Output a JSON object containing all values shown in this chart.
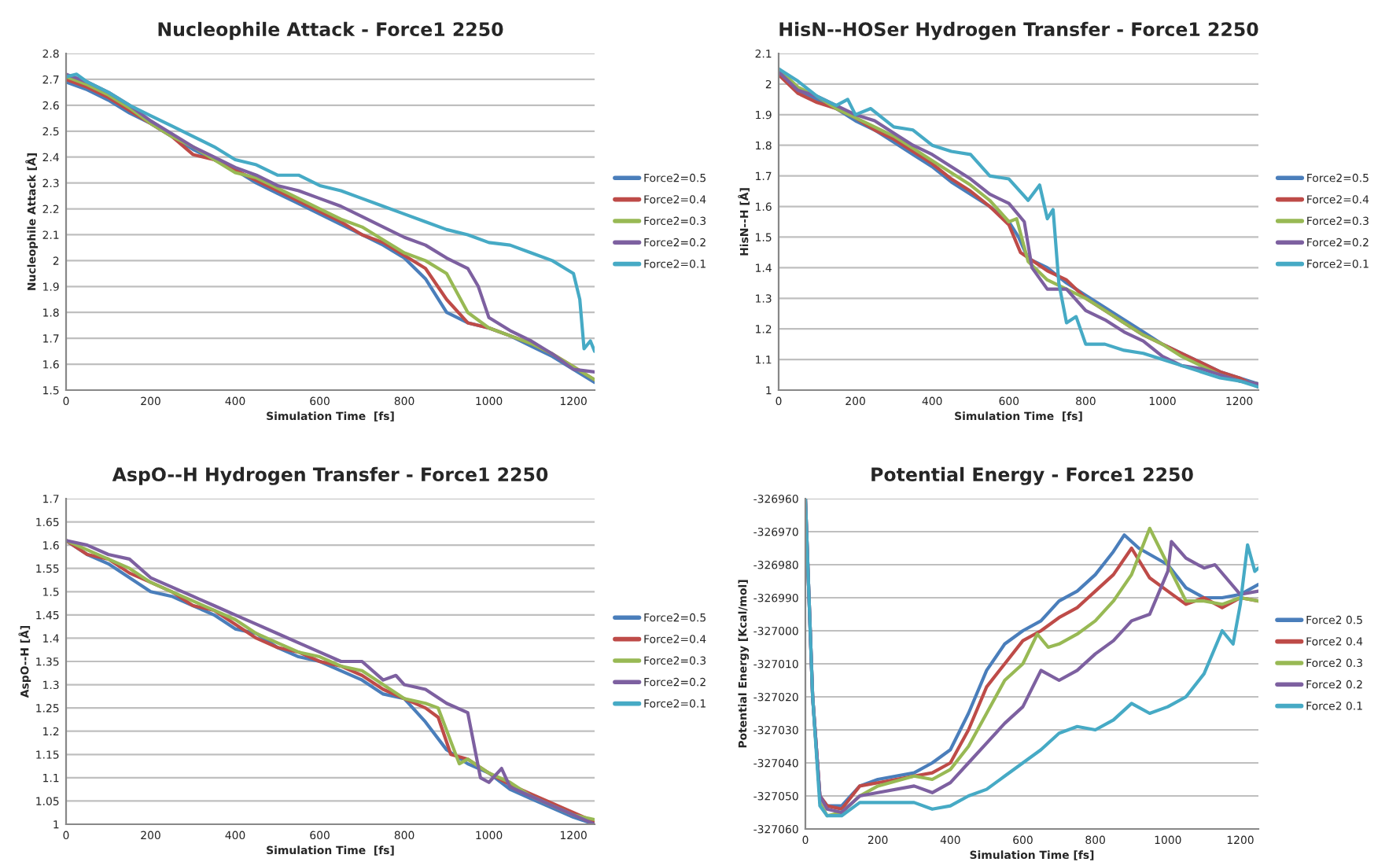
{
  "chart_data": [
    {
      "type": "line",
      "title": "Nucleophile Attack - Force1 2250",
      "xlabel": "Simulation Time  [fs]",
      "ylabel": "Nucleophile Attack [Å]",
      "xlim": [
        0,
        1250
      ],
      "xticks": [
        0,
        200,
        400,
        600,
        800,
        1000,
        1200
      ],
      "ylim": [
        1.5,
        2.8
      ],
      "yticks": [
        1.5,
        1.6,
        1.7,
        1.8,
        1.9,
        2,
        2.1,
        2.2,
        2.3,
        2.4,
        2.5,
        2.6,
        2.7,
        2.8
      ],
      "grid": "y",
      "legend": "right",
      "series": [
        {
          "name": "Force2=0.5",
          "color": "#4a7ebb",
          "x": [
            0,
            50,
            100,
            150,
            200,
            250,
            300,
            350,
            400,
            450,
            500,
            550,
            600,
            650,
            700,
            750,
            800,
            850,
            900,
            950,
            1000,
            1050,
            1100,
            1150,
            1200,
            1250
          ],
          "values": [
            2.69,
            2.66,
            2.62,
            2.57,
            2.53,
            2.48,
            2.43,
            2.39,
            2.35,
            2.3,
            2.26,
            2.22,
            2.18,
            2.14,
            2.1,
            2.06,
            2.01,
            1.93,
            1.8,
            1.76,
            1.74,
            1.71,
            1.67,
            1.63,
            1.58,
            1.53
          ]
        },
        {
          "name": "Force2=0.4",
          "color": "#be4b48",
          "x": [
            0,
            50,
            100,
            150,
            200,
            250,
            300,
            350,
            400,
            450,
            500,
            550,
            600,
            650,
            700,
            750,
            800,
            850,
            900,
            950,
            1000,
            1050,
            1100,
            1150,
            1200,
            1250
          ],
          "values": [
            2.7,
            2.67,
            2.63,
            2.58,
            2.53,
            2.48,
            2.41,
            2.39,
            2.35,
            2.31,
            2.27,
            2.23,
            2.19,
            2.15,
            2.1,
            2.07,
            2.02,
            1.97,
            1.85,
            1.76,
            1.74,
            1.71,
            1.68,
            1.64,
            1.59,
            1.54
          ]
        },
        {
          "name": "Force2=0.3",
          "color": "#98b954",
          "x": [
            0,
            50,
            100,
            150,
            200,
            250,
            300,
            350,
            400,
            450,
            500,
            550,
            600,
            650,
            700,
            750,
            800,
            850,
            900,
            950,
            1000,
            1050,
            1100,
            1150,
            1200,
            1250
          ],
          "values": [
            2.71,
            2.68,
            2.64,
            2.59,
            2.53,
            2.48,
            2.44,
            2.39,
            2.34,
            2.32,
            2.28,
            2.24,
            2.2,
            2.16,
            2.13,
            2.08,
            2.03,
            2.0,
            1.95,
            1.8,
            1.74,
            1.71,
            1.68,
            1.64,
            1.59,
            1.54
          ]
        },
        {
          "name": "Force2=0.2",
          "color": "#7d60a0",
          "x": [
            0,
            50,
            100,
            150,
            200,
            250,
            300,
            350,
            400,
            450,
            500,
            550,
            600,
            650,
            700,
            750,
            800,
            850,
            900,
            950,
            975,
            1000,
            1050,
            1100,
            1150,
            1200,
            1250
          ],
          "values": [
            2.72,
            2.69,
            2.65,
            2.6,
            2.54,
            2.49,
            2.44,
            2.4,
            2.36,
            2.33,
            2.29,
            2.27,
            2.24,
            2.21,
            2.17,
            2.13,
            2.09,
            2.06,
            2.01,
            1.97,
            1.9,
            1.78,
            1.73,
            1.69,
            1.64,
            1.58,
            1.57
          ]
        },
        {
          "name": "Force2=0.1",
          "color": "#46aac5",
          "x": [
            0,
            25,
            50,
            100,
            150,
            200,
            250,
            300,
            350,
            400,
            450,
            500,
            550,
            600,
            650,
            700,
            750,
            800,
            850,
            900,
            950,
            1000,
            1050,
            1100,
            1150,
            1180,
            1200,
            1215,
            1225,
            1240,
            1250
          ],
          "values": [
            2.71,
            2.72,
            2.69,
            2.65,
            2.6,
            2.56,
            2.52,
            2.48,
            2.44,
            2.39,
            2.37,
            2.33,
            2.33,
            2.29,
            2.27,
            2.24,
            2.21,
            2.18,
            2.15,
            2.12,
            2.1,
            2.07,
            2.06,
            2.03,
            2.0,
            1.97,
            1.95,
            1.85,
            1.66,
            1.69,
            1.65
          ]
        }
      ]
    },
    {
      "type": "line",
      "title": "HisN--HOSer Hydrogen Transfer - Force1 2250",
      "xlabel": "Simulation Time  [fs]",
      "ylabel": "HisN--H [Å]",
      "xlim": [
        0,
        1250
      ],
      "xticks": [
        0,
        200,
        400,
        600,
        800,
        1000,
        1200
      ],
      "ylim": [
        1,
        2.1
      ],
      "yticks": [
        1,
        1.1,
        1.2,
        1.3,
        1.4,
        1.5,
        1.6,
        1.7,
        1.8,
        1.9,
        2,
        2.1
      ],
      "grid": "y",
      "legend": "right",
      "series": [
        {
          "name": "Force2=0.5",
          "color": "#4a7ebb",
          "x": [
            0,
            50,
            100,
            150,
            200,
            250,
            300,
            350,
            400,
            450,
            500,
            550,
            600,
            625,
            650,
            700,
            750,
            800,
            850,
            900,
            950,
            1000,
            1050,
            1100,
            1150,
            1200,
            1250
          ],
          "values": [
            2.04,
            1.98,
            1.95,
            1.92,
            1.88,
            1.85,
            1.81,
            1.77,
            1.73,
            1.68,
            1.64,
            1.6,
            1.55,
            1.5,
            1.43,
            1.4,
            1.35,
            1.31,
            1.27,
            1.23,
            1.19,
            1.15,
            1.12,
            1.09,
            1.06,
            1.04,
            1.02
          ]
        },
        {
          "name": "Force2=0.4",
          "color": "#be4b48",
          "x": [
            0,
            50,
            100,
            150,
            200,
            250,
            300,
            350,
            400,
            450,
            500,
            550,
            600,
            630,
            700,
            750,
            800,
            850,
            900,
            950,
            1000,
            1050,
            1100,
            1150,
            1200,
            1250
          ],
          "values": [
            2.03,
            1.97,
            1.94,
            1.92,
            1.89,
            1.85,
            1.82,
            1.78,
            1.74,
            1.69,
            1.65,
            1.6,
            1.54,
            1.45,
            1.39,
            1.36,
            1.3,
            1.26,
            1.22,
            1.18,
            1.15,
            1.12,
            1.09,
            1.06,
            1.04,
            1.01
          ]
        },
        {
          "name": "Force2=0.3",
          "color": "#98b954",
          "x": [
            0,
            50,
            100,
            150,
            200,
            250,
            300,
            350,
            400,
            450,
            500,
            550,
            600,
            620,
            650,
            700,
            750,
            800,
            850,
            900,
            950,
            1000,
            1050,
            1100,
            1150,
            1200,
            1250
          ],
          "values": [
            2.05,
            1.99,
            1.96,
            1.92,
            1.89,
            1.86,
            1.83,
            1.79,
            1.75,
            1.71,
            1.67,
            1.62,
            1.55,
            1.56,
            1.42,
            1.36,
            1.33,
            1.3,
            1.26,
            1.22,
            1.18,
            1.15,
            1.11,
            1.08,
            1.05,
            1.03,
            1.02
          ]
        },
        {
          "name": "Force2=0.2",
          "color": "#7d60a0",
          "x": [
            0,
            50,
            100,
            150,
            200,
            250,
            300,
            350,
            400,
            450,
            500,
            550,
            600,
            640,
            660,
            700,
            750,
            800,
            850,
            900,
            950,
            1000,
            1050,
            1100,
            1150,
            1200,
            1250
          ],
          "values": [
            2.04,
            1.98,
            1.96,
            1.93,
            1.9,
            1.88,
            1.84,
            1.8,
            1.77,
            1.73,
            1.69,
            1.64,
            1.61,
            1.55,
            1.4,
            1.33,
            1.33,
            1.26,
            1.23,
            1.19,
            1.16,
            1.11,
            1.08,
            1.07,
            1.05,
            1.03,
            1.02
          ]
        },
        {
          "name": "Force2=0.1",
          "color": "#46aac5",
          "x": [
            0,
            50,
            100,
            150,
            180,
            200,
            240,
            300,
            350,
            400,
            450,
            500,
            550,
            600,
            650,
            680,
            700,
            715,
            730,
            750,
            775,
            800,
            850,
            900,
            950,
            1000,
            1050,
            1100,
            1150,
            1200,
            1250
          ],
          "values": [
            2.05,
            2.01,
            1.96,
            1.93,
            1.95,
            1.9,
            1.92,
            1.86,
            1.85,
            1.8,
            1.78,
            1.77,
            1.7,
            1.69,
            1.62,
            1.67,
            1.56,
            1.59,
            1.35,
            1.22,
            1.24,
            1.15,
            1.15,
            1.13,
            1.12,
            1.1,
            1.08,
            1.06,
            1.04,
            1.03,
            1.01
          ]
        }
      ]
    },
    {
      "type": "line",
      "title": "AspO--H Hydrogen Transfer - Force1 2250",
      "xlabel": "Simulation Time  [fs]",
      "ylabel": "AspO--H [Å]",
      "xlim": [
        0,
        1250
      ],
      "xticks": [
        0,
        200,
        400,
        600,
        800,
        1000,
        1200
      ],
      "ylim": [
        1,
        1.7
      ],
      "yticks": [
        1,
        1.05,
        1.1,
        1.15,
        1.2,
        1.25,
        1.3,
        1.35,
        1.4,
        1.45,
        1.5,
        1.55,
        1.6,
        1.65,
        1.7
      ],
      "grid": "y",
      "legend": "right",
      "series": [
        {
          "name": "Force2=0.5",
          "color": "#4a7ebb",
          "x": [
            0,
            50,
            100,
            150,
            200,
            250,
            300,
            350,
            400,
            450,
            500,
            550,
            600,
            650,
            700,
            750,
            800,
            850,
            900,
            950,
            1000,
            1050,
            1100,
            1150,
            1200,
            1250
          ],
          "values": [
            1.61,
            1.58,
            1.56,
            1.53,
            1.5,
            1.49,
            1.47,
            1.45,
            1.42,
            1.41,
            1.38,
            1.36,
            1.35,
            1.33,
            1.31,
            1.28,
            1.27,
            1.22,
            1.16,
            1.13,
            1.11,
            1.075,
            1.055,
            1.035,
            1.015,
            1.0
          ]
        },
        {
          "name": "Force2=0.4",
          "color": "#be4b48",
          "x": [
            0,
            50,
            100,
            150,
            200,
            250,
            300,
            350,
            400,
            450,
            500,
            550,
            600,
            650,
            700,
            750,
            800,
            850,
            880,
            910,
            950,
            1000,
            1050,
            1100,
            1150,
            1200,
            1250
          ],
          "values": [
            1.61,
            1.58,
            1.57,
            1.54,
            1.52,
            1.5,
            1.47,
            1.46,
            1.43,
            1.4,
            1.38,
            1.37,
            1.35,
            1.34,
            1.32,
            1.29,
            1.27,
            1.25,
            1.23,
            1.15,
            1.14,
            1.11,
            1.085,
            1.065,
            1.045,
            1.025,
            1.005
          ]
        },
        {
          "name": "Force2=0.3",
          "color": "#98b954",
          "x": [
            0,
            50,
            100,
            150,
            200,
            250,
            300,
            350,
            400,
            450,
            500,
            550,
            600,
            650,
            700,
            750,
            800,
            850,
            880,
            930,
            950,
            1000,
            1050,
            1100,
            1150,
            1200,
            1250
          ],
          "values": [
            1.61,
            1.59,
            1.57,
            1.55,
            1.52,
            1.5,
            1.48,
            1.46,
            1.44,
            1.41,
            1.39,
            1.37,
            1.36,
            1.34,
            1.33,
            1.3,
            1.27,
            1.26,
            1.25,
            1.13,
            1.14,
            1.11,
            1.09,
            1.06,
            1.04,
            1.02,
            1.01
          ]
        },
        {
          "name": "Force2=0.2",
          "color": "#7d60a0",
          "x": [
            0,
            50,
            100,
            150,
            200,
            250,
            300,
            350,
            400,
            450,
            500,
            550,
            600,
            650,
            700,
            750,
            780,
            800,
            850,
            900,
            950,
            980,
            1000,
            1030,
            1050,
            1100,
            1150,
            1200,
            1250
          ],
          "values": [
            1.61,
            1.6,
            1.58,
            1.57,
            1.53,
            1.51,
            1.49,
            1.47,
            1.45,
            1.43,
            1.41,
            1.39,
            1.37,
            1.35,
            1.35,
            1.31,
            1.32,
            1.3,
            1.29,
            1.26,
            1.24,
            1.1,
            1.09,
            1.12,
            1.08,
            1.06,
            1.04,
            1.02,
            1.0
          ]
        },
        {
          "name": "Force2=0.1",
          "color": "#46aac5"
        }
      ]
    },
    {
      "type": "line",
      "title": "Potential Energy - Force1 2250",
      "xlabel": "Simulation Time [fs]",
      "ylabel": "Potential Energy [Kcal/mol]",
      "xlim": [
        0,
        1250
      ],
      "xticks": [
        0,
        200,
        400,
        600,
        800,
        1000,
        1200
      ],
      "ylim": [
        -327060,
        -326960
      ],
      "yticks": [
        -327060,
        -327050,
        -327040,
        -327030,
        -327020,
        -327010,
        -327000,
        -326990,
        -326980,
        -326970,
        -326960
      ],
      "grid": "y",
      "legend": "right",
      "series": [
        {
          "name": "Force2 0.5",
          "color": "#4a7ebb",
          "x": [
            0,
            20,
            40,
            60,
            100,
            150,
            200,
            300,
            350,
            400,
            450,
            500,
            550,
            600,
            650,
            700,
            750,
            800,
            850,
            880,
            920,
            1000,
            1050,
            1100,
            1150,
            1200,
            1250
          ],
          "values": [
            -326960,
            -327020,
            -327050,
            -327053,
            -327053,
            -327047,
            -327045,
            -327043,
            -327040,
            -327036,
            -327025,
            -327012,
            -327004,
            -327000,
            -326997,
            -326991,
            -326988,
            -326983,
            -326976,
            -326971,
            -326975,
            -326980,
            -326987,
            -326990,
            -326990,
            -326989,
            -326986
          ]
        },
        {
          "name": "Force2 0.4",
          "color": "#be4b48",
          "x": [
            0,
            20,
            40,
            60,
            100,
            150,
            200,
            300,
            350,
            400,
            450,
            500,
            550,
            600,
            650,
            700,
            750,
            800,
            850,
            900,
            950,
            1000,
            1050,
            1100,
            1150,
            1200,
            1250
          ],
          "values": [
            -326960,
            -327020,
            -327050,
            -327053,
            -327054,
            -327047,
            -327046,
            -327044,
            -327043,
            -327040,
            -327030,
            -327017,
            -327010,
            -327003,
            -327000,
            -326996,
            -326993,
            -326988,
            -326983,
            -326975,
            -326984,
            -326988,
            -326992,
            -326990,
            -326993,
            -326990,
            -326991
          ]
        },
        {
          "name": "Force2 0.3",
          "color": "#98b954",
          "x": [
            40,
            60,
            100,
            150,
            200,
            300,
            350,
            400,
            450,
            500,
            550,
            600,
            640,
            670,
            700,
            750,
            800,
            850,
            900,
            950,
            1000,
            1050,
            1100,
            1150,
            1200,
            1250
          ],
          "values": [
            -327052,
            -327056,
            -327055,
            -327050,
            -327047,
            -327044,
            -327045,
            -327042,
            -327035,
            -327025,
            -327015,
            -327010,
            -327001,
            -327005,
            -327004,
            -327001,
            -326997,
            -326991,
            -326983,
            -326969,
            -326980,
            -326991,
            -326991,
            -326992,
            -326990,
            -326991
          ]
        },
        {
          "name": "Force2 0.2",
          "color": "#7d60a0",
          "x": [
            0,
            20,
            40,
            60,
            100,
            150,
            200,
            300,
            350,
            400,
            450,
            500,
            550,
            600,
            650,
            700,
            750,
            800,
            850,
            900,
            950,
            1000,
            1010,
            1050,
            1100,
            1130,
            1200,
            1250
          ],
          "values": [
            -326960,
            -327020,
            -327050,
            -327054,
            -327055,
            -327050,
            -327049,
            -327047,
            -327049,
            -327046,
            -327040,
            -327034,
            -327028,
            -327023,
            -327012,
            -327015,
            -327012,
            -327007,
            -327003,
            -326997,
            -326995,
            -326982,
            -326973,
            -326978,
            -326981,
            -326980,
            -326989,
            -326988
          ]
        },
        {
          "name": "Force2 0.1",
          "color": "#46aac5",
          "x": [
            0,
            20,
            40,
            60,
            100,
            150,
            200,
            300,
            350,
            400,
            450,
            500,
            550,
            600,
            650,
            700,
            750,
            800,
            850,
            900,
            950,
            1000,
            1050,
            1100,
            1150,
            1180,
            1200,
            1220,
            1240,
            1250
          ],
          "values": [
            -326960,
            -327020,
            -327053,
            -327056,
            -327056,
            -327052,
            -327052,
            -327052,
            -327054,
            -327053,
            -327050,
            -327048,
            -327044,
            -327040,
            -327036,
            -327031,
            -327029,
            -327030,
            -327027,
            -327022,
            -327025,
            -327023,
            -327020,
            -327013,
            -327000,
            -327004,
            -326992,
            -326974,
            -326982,
            -326981
          ]
        }
      ]
    }
  ]
}
